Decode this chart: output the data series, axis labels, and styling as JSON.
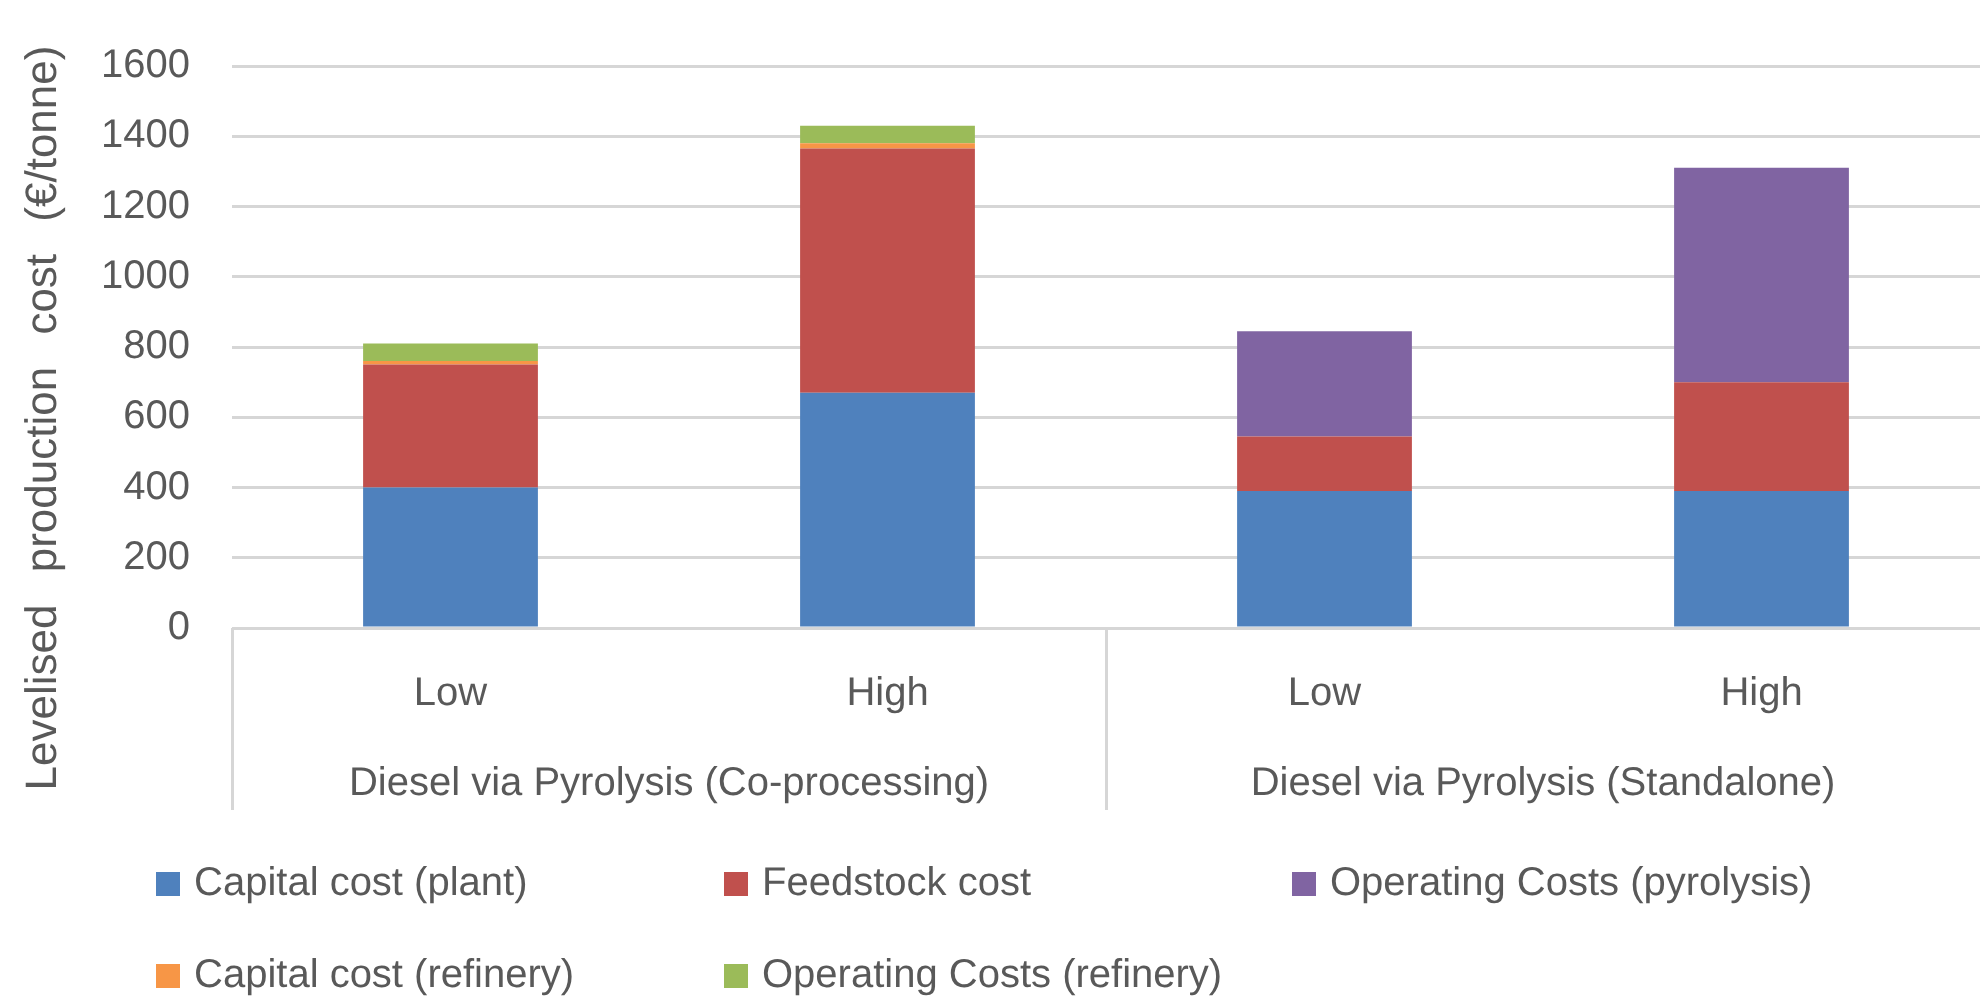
{
  "chart_data": {
    "type": "bar",
    "stacked": true,
    "categories": [
      "Low",
      "High",
      "Low",
      "High"
    ],
    "annotations": [
      "Diesel via Pyrolysis (Co-processing)",
      "Diesel via Pyrolysis (Standalone)"
    ],
    "ylabel": "Levelised production cost (€/tonne)",
    "ylim": [
      0,
      1600
    ],
    "yticks": [
      0,
      200,
      400,
      600,
      800,
      1000,
      1200,
      1400,
      1600
    ],
    "grid": "y",
    "legend": "bottom",
    "series": [
      {
        "name": "Capital cost (plant)",
        "color": "#4f81bd",
        "values": [
          400,
          670,
          390,
          390
        ]
      },
      {
        "name": "Feedstock cost",
        "color": "#c0504d",
        "values": [
          350,
          695,
          155,
          310
        ]
      },
      {
        "name": "Operating Costs (pyrolysis)",
        "color": "#8064a2",
        "values": [
          null,
          null,
          300,
          610
        ]
      },
      {
        "name": "Capital cost (refinery)",
        "color": "#f79646",
        "values": [
          10,
          15,
          null,
          null
        ]
      },
      {
        "name": "Operating Costs (refinery)",
        "color": "#9bbb59",
        "values": [
          50,
          50,
          null,
          null
        ]
      }
    ]
  }
}
